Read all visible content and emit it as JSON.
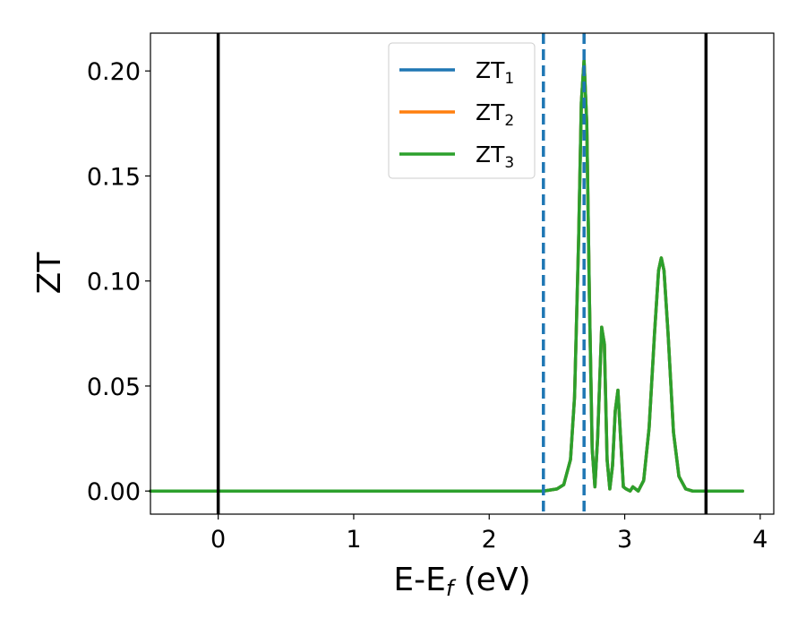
{
  "chart_data": {
    "type": "line",
    "title": "",
    "xlabel": "E-E",
    "xlabel_sub": "f",
    "xlabel_unit": " (eV)",
    "ylabel": "ZT",
    "xlim": [
      -0.5,
      4.1
    ],
    "ylim": [
      -0.011,
      0.218
    ],
    "xticks": [
      0,
      1,
      2,
      3,
      4
    ],
    "xtick_labels": [
      "0",
      "1",
      "2",
      "3",
      "4"
    ],
    "yticks": [
      0.0,
      0.05,
      0.1,
      0.15,
      0.2
    ],
    "ytick_labels": [
      "0.00",
      "0.05",
      "0.10",
      "0.15",
      "0.20"
    ],
    "grid": false,
    "legend_position": "top-center",
    "vlines": [
      {
        "x": 0.0,
        "style": "solid",
        "color": "#000000"
      },
      {
        "x": 2.4,
        "style": "dashed",
        "color": "#1f77b4"
      },
      {
        "x": 2.7,
        "style": "dashed",
        "color": "#1f77b4"
      },
      {
        "x": 3.6,
        "style": "solid",
        "color": "#000000"
      }
    ],
    "x": [
      -0.5,
      0.0,
      1.0,
      2.0,
      2.4,
      2.5,
      2.55,
      2.6,
      2.63,
      2.66,
      2.68,
      2.7,
      2.72,
      2.74,
      2.76,
      2.78,
      2.8,
      2.83,
      2.85,
      2.87,
      2.89,
      2.91,
      2.93,
      2.95,
      2.97,
      2.99,
      3.01,
      3.04,
      3.06,
      3.08,
      3.1,
      3.14,
      3.18,
      3.22,
      3.25,
      3.27,
      3.29,
      3.32,
      3.36,
      3.4,
      3.45,
      3.5,
      3.87
    ],
    "series": [
      {
        "name": "ZT",
        "name_sub": "1",
        "color": "#1f77b4",
        "values": [
          0,
          0,
          0,
          0,
          0,
          0.001,
          0.003,
          0.015,
          0.045,
          0.12,
          0.185,
          0.205,
          0.175,
          0.09,
          0.02,
          0.002,
          0.025,
          0.078,
          0.07,
          0.015,
          0.001,
          0.012,
          0.038,
          0.048,
          0.025,
          0.002,
          0.001,
          0.0,
          0.002,
          0.001,
          0.0,
          0.005,
          0.03,
          0.075,
          0.105,
          0.111,
          0.105,
          0.075,
          0.028,
          0.007,
          0.001,
          0,
          0
        ]
      },
      {
        "name": "ZT",
        "name_sub": "2",
        "color": "#ff7f0e",
        "values": [
          0,
          0,
          0,
          0,
          0,
          0.001,
          0.003,
          0.015,
          0.045,
          0.12,
          0.185,
          0.205,
          0.175,
          0.09,
          0.02,
          0.002,
          0.025,
          0.078,
          0.07,
          0.015,
          0.001,
          0.012,
          0.038,
          0.048,
          0.025,
          0.002,
          0.001,
          0.0,
          0.002,
          0.001,
          0.0,
          0.005,
          0.03,
          0.075,
          0.105,
          0.111,
          0.105,
          0.075,
          0.028,
          0.007,
          0.001,
          0,
          0
        ]
      },
      {
        "name": "ZT",
        "name_sub": "3",
        "color": "#2ca02c",
        "values": [
          0,
          0,
          0,
          0,
          0,
          0.001,
          0.003,
          0.015,
          0.045,
          0.12,
          0.185,
          0.205,
          0.175,
          0.09,
          0.02,
          0.002,
          0.025,
          0.078,
          0.07,
          0.015,
          0.001,
          0.012,
          0.038,
          0.048,
          0.025,
          0.002,
          0.001,
          0.0,
          0.002,
          0.001,
          0.0,
          0.005,
          0.03,
          0.075,
          0.105,
          0.111,
          0.105,
          0.075,
          0.028,
          0.007,
          0.001,
          0,
          0
        ]
      }
    ]
  }
}
